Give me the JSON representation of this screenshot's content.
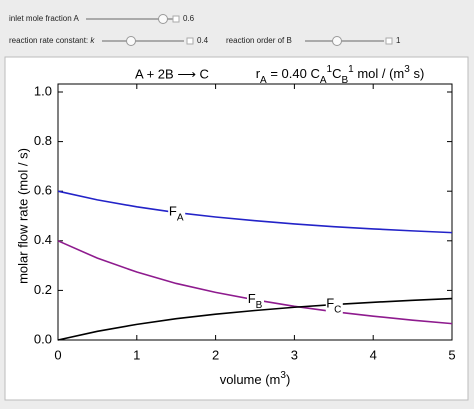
{
  "controls": [
    {
      "label": "inlet mole fraction A",
      "value": "0.6"
    },
    {
      "label": "reaction rate constant: ",
      "label_italic": "k",
      "value": "0.4"
    },
    {
      "label": "reaction order of B",
      "value": "1"
    }
  ],
  "chart_data": {
    "type": "line",
    "title": "A + 2B ⟶ C",
    "subtitle": [
      {
        "t": "r"
      },
      {
        "t": "A",
        "s": "sub"
      },
      {
        "t": " = 0.40 C"
      },
      {
        "t": "A",
        "s": "sub"
      },
      {
        "t": "1",
        "s": "sup"
      },
      {
        "t": "C"
      },
      {
        "t": "B",
        "s": "sub"
      },
      {
        "t": "1",
        "s": "sup"
      },
      {
        "t": "  mol / (m"
      },
      {
        "t": "3",
        "s": "sup"
      },
      {
        "t": " s)"
      }
    ],
    "xlabel": [
      {
        "t": "volume (m"
      },
      {
        "t": "3",
        "s": "sup"
      },
      {
        "t": ")"
      }
    ],
    "ylabel": "molar flow rate (mol / s)",
    "x": [
      0,
      0.5,
      1,
      1.5,
      2,
      2.5,
      3,
      3.5,
      4,
      4.5,
      5
    ],
    "series": [
      {
        "label": {
          "main": "F",
          "sub": "A"
        },
        "color": "#2323c8",
        "values": [
          0.6,
          0.565,
          0.537,
          0.514,
          0.496,
          0.481,
          0.468,
          0.457,
          0.448,
          0.44,
          0.433
        ]
      },
      {
        "label": {
          "main": "F",
          "sub": "B"
        },
        "color": "#8e1b8e",
        "values": [
          0.4,
          0.33,
          0.274,
          0.228,
          0.192,
          0.162,
          0.136,
          0.114,
          0.096,
          0.08,
          0.066
        ]
      },
      {
        "label": {
          "main": "F",
          "sub": "C"
        },
        "color": "#000000",
        "values": [
          0,
          0.035,
          0.063,
          0.086,
          0.104,
          0.119,
          0.132,
          0.143,
          0.152,
          0.16,
          0.167
        ]
      }
    ],
    "xlim": [
      0,
      5
    ],
    "xticks": [
      0,
      1,
      2,
      3,
      4,
      5
    ],
    "ylim": [
      0,
      1
    ],
    "yticks": [
      {
        "value": 0,
        "label": "0.0"
      },
      {
        "value": 0.2,
        "label": "0.2"
      },
      {
        "value": 0.4,
        "label": "0.4"
      },
      {
        "value": 0.6,
        "label": "0.6"
      },
      {
        "value": 0.8,
        "label": "0.8"
      },
      {
        "value": 1,
        "label": "1.0"
      }
    ]
  }
}
